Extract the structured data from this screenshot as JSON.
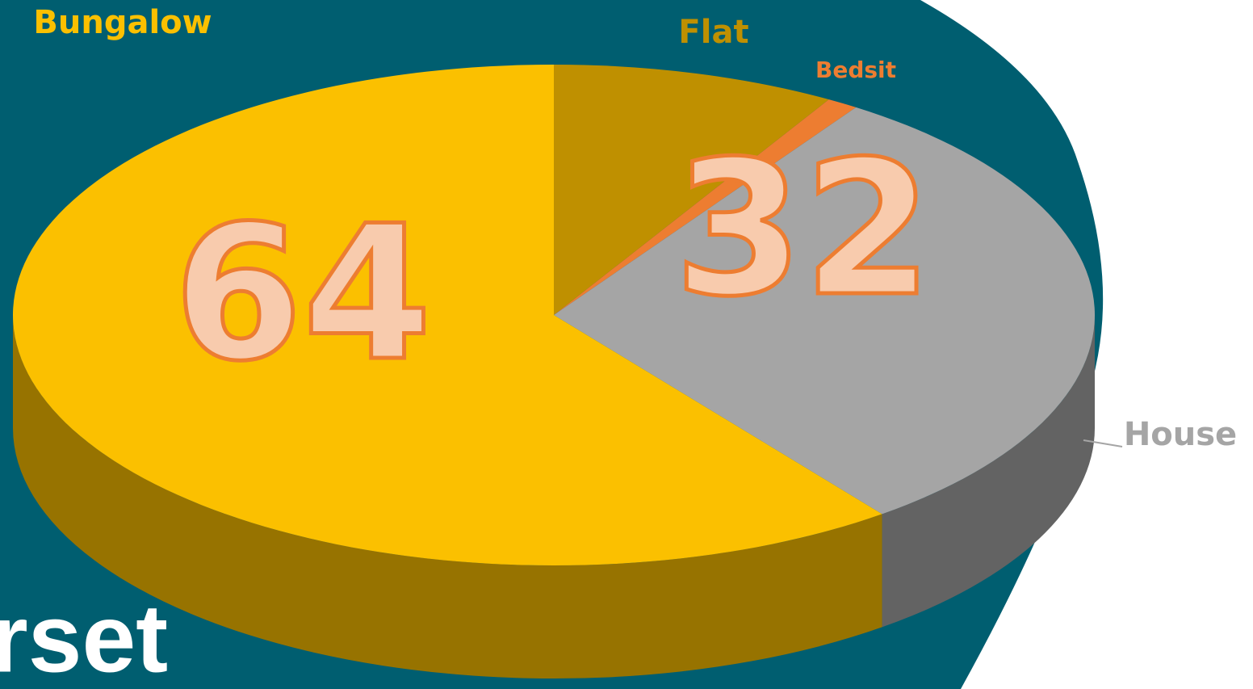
{
  "chart_data": {
    "type": "pie",
    "categories": [
      "Flat",
      "Bedsit",
      "House",
      "Bungalow"
    ],
    "values": [
      9,
      1,
      32,
      64
    ],
    "value_labels": [
      null,
      null,
      "32",
      "64"
    ],
    "colors": [
      "#bf9000",
      "#ed7d31",
      "#a5a5a5",
      "#fbc000"
    ],
    "footer_text": "rset"
  }
}
